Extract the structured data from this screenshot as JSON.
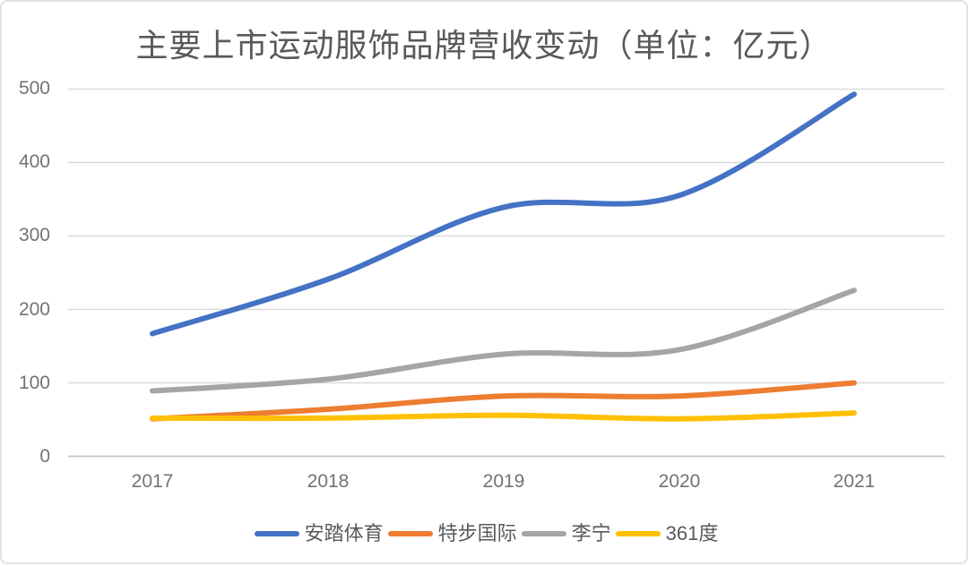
{
  "page": {
    "title": "主要上市运动服饰品牌营收变动（单位：亿元）"
  },
  "chart_data": {
    "type": "line",
    "title": "主要上市运动服饰品牌营收变动（单位：亿元）",
    "unit_label": "亿元",
    "categories": [
      "2017",
      "2018",
      "2019",
      "2020",
      "2021"
    ],
    "series": [
      {
        "name": "安踏体育",
        "color": "#4472C4",
        "values": [
          167,
          241,
          339,
          355,
          493
        ]
      },
      {
        "name": "特步国际",
        "color": "#ED7D31",
        "values": [
          51,
          64,
          82,
          82,
          100
        ]
      },
      {
        "name": "李宁",
        "color": "#A5A5A5",
        "values": [
          89,
          105,
          139,
          145,
          226
        ]
      },
      {
        "name": "361度",
        "color": "#FFC000",
        "values": [
          52,
          52,
          56,
          51,
          59
        ]
      }
    ],
    "yticks": [
      "0",
      "100",
      "200",
      "300",
      "400",
      "500"
    ],
    "ylim": [
      0,
      500
    ],
    "grid": true,
    "grid_color": "#d9d9d9",
    "axis_line_color": "#c9c9c9",
    "line_style": "smooth",
    "legend_position": "bottom"
  }
}
